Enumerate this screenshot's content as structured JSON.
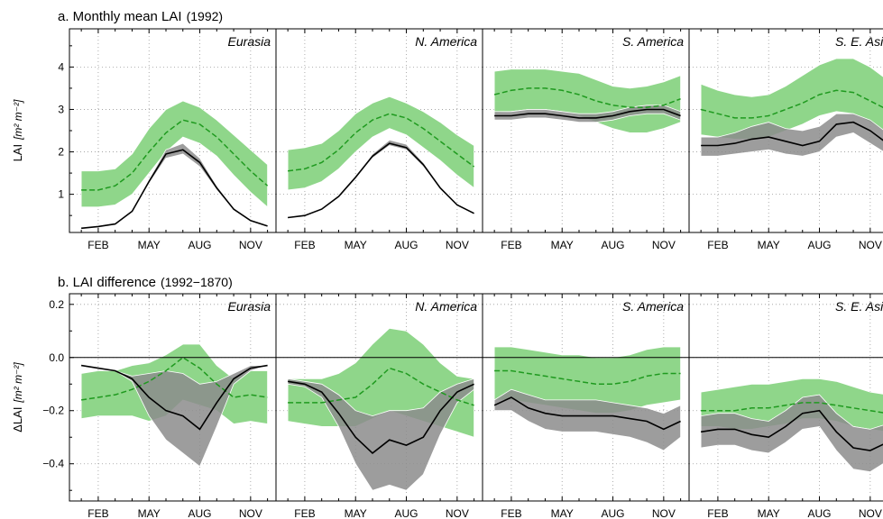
{
  "colors": {
    "green_band": "#8fd68a",
    "green_line": "#1f9a1f",
    "gray_band": "#8c8c8c",
    "black_line": "#000000",
    "overlap_band": "#4f7a4f"
  },
  "month_ticks": [
    "FEB",
    "MAY",
    "AUG",
    "NOV"
  ],
  "chart_data": [
    {
      "id": "a",
      "type": "line",
      "title_main": "a. Monthly mean LAI",
      "title_paren": "(1992)",
      "ylabel_main": "LAI",
      "ylabel_units": "[m² m⁻²]",
      "ylim": [
        0.1,
        4.9
      ],
      "yticks": [
        1,
        2,
        3,
        4
      ],
      "ytick_labels": [
        "1",
        "2",
        "3",
        "4"
      ],
      "zero_line": false,
      "x": [
        1,
        2,
        3,
        4,
        5,
        6,
        7,
        8,
        9,
        10,
        11,
        12
      ],
      "panels": [
        {
          "region": "Eurasia",
          "green_mean": [
            1.1,
            1.1,
            1.2,
            1.5,
            2.0,
            2.45,
            2.75,
            2.65,
            2.35,
            1.95,
            1.55,
            1.2
          ],
          "green_low": [
            0.7,
            0.7,
            0.75,
            1.0,
            1.5,
            2.0,
            2.35,
            2.2,
            1.9,
            1.45,
            1.05,
            0.7
          ],
          "green_high": [
            1.55,
            1.55,
            1.6,
            1.95,
            2.55,
            3.0,
            3.2,
            3.05,
            2.75,
            2.4,
            2.05,
            1.7
          ],
          "black_mean": [
            0.2,
            0.24,
            0.3,
            0.6,
            1.3,
            1.95,
            2.05,
            1.75,
            1.15,
            0.65,
            0.38,
            0.25
          ],
          "gray_low": [
            0.2,
            0.24,
            0.3,
            0.6,
            1.25,
            1.85,
            1.95,
            1.65,
            1.1,
            0.62,
            0.36,
            0.24
          ],
          "gray_high": [
            0.2,
            0.24,
            0.3,
            0.62,
            1.35,
            2.05,
            2.2,
            1.85,
            1.2,
            0.68,
            0.4,
            0.26
          ]
        },
        {
          "region": "N. America",
          "green_mean": [
            1.55,
            1.6,
            1.75,
            2.05,
            2.45,
            2.75,
            2.9,
            2.8,
            2.55,
            2.25,
            1.95,
            1.65
          ],
          "green_low": [
            1.1,
            1.15,
            1.3,
            1.6,
            2.0,
            2.35,
            2.55,
            2.4,
            2.1,
            1.8,
            1.45,
            1.15
          ],
          "green_high": [
            2.05,
            2.1,
            2.2,
            2.5,
            2.9,
            3.15,
            3.3,
            3.15,
            2.95,
            2.7,
            2.4,
            2.15
          ],
          "black_mean": [
            0.45,
            0.5,
            0.65,
            0.95,
            1.4,
            1.9,
            2.2,
            2.1,
            1.7,
            1.15,
            0.75,
            0.55
          ],
          "gray_low": [
            0.45,
            0.5,
            0.65,
            0.95,
            1.38,
            1.85,
            2.15,
            2.05,
            1.65,
            1.12,
            0.73,
            0.53
          ],
          "gray_high": [
            0.45,
            0.5,
            0.65,
            0.97,
            1.42,
            1.95,
            2.28,
            2.18,
            1.75,
            1.18,
            0.77,
            0.56
          ]
        },
        {
          "region": "S. America",
          "green_mean": [
            3.35,
            3.45,
            3.5,
            3.5,
            3.45,
            3.35,
            3.2,
            3.1,
            3.05,
            3.05,
            3.1,
            3.25
          ],
          "green_low": [
            2.9,
            2.95,
            3.0,
            3.0,
            2.95,
            2.85,
            2.7,
            2.55,
            2.45,
            2.45,
            2.55,
            2.7
          ],
          "green_high": [
            3.9,
            3.95,
            3.95,
            3.95,
            3.9,
            3.85,
            3.7,
            3.55,
            3.5,
            3.55,
            3.65,
            3.8
          ],
          "black_mean": [
            2.85,
            2.85,
            2.9,
            2.9,
            2.85,
            2.8,
            2.8,
            2.85,
            2.95,
            3.0,
            3.0,
            2.85
          ],
          "gray_low": [
            2.75,
            2.75,
            2.8,
            2.8,
            2.75,
            2.7,
            2.7,
            2.75,
            2.85,
            2.9,
            2.9,
            2.75
          ],
          "gray_high": [
            2.95,
            2.95,
            3.0,
            3.0,
            2.95,
            2.9,
            2.9,
            2.95,
            3.05,
            3.1,
            3.1,
            2.95
          ]
        },
        {
          "region": "S. E. Asia",
          "green_mean": [
            3.0,
            2.9,
            2.8,
            2.8,
            2.85,
            3.0,
            3.15,
            3.35,
            3.45,
            3.4,
            3.2,
            3.0
          ],
          "green_low": [
            2.4,
            2.35,
            2.3,
            2.3,
            2.35,
            2.5,
            2.65,
            2.85,
            2.95,
            2.9,
            2.7,
            2.45
          ],
          "green_high": [
            3.6,
            3.45,
            3.35,
            3.3,
            3.35,
            3.55,
            3.8,
            4.05,
            4.2,
            4.2,
            4.0,
            3.7
          ],
          "black_mean": [
            2.15,
            2.15,
            2.2,
            2.3,
            2.35,
            2.25,
            2.15,
            2.25,
            2.65,
            2.7,
            2.5,
            2.2
          ],
          "gray_low": [
            1.9,
            1.9,
            1.95,
            2.0,
            2.05,
            1.95,
            1.9,
            2.0,
            2.35,
            2.45,
            2.2,
            1.95
          ],
          "gray_high": [
            2.35,
            2.35,
            2.45,
            2.6,
            2.7,
            2.55,
            2.5,
            2.6,
            2.9,
            2.9,
            2.75,
            2.45
          ]
        }
      ]
    },
    {
      "id": "b",
      "type": "line",
      "title_main": "b. LAI difference",
      "title_paren": "(1992−1870)",
      "ylabel_main": "ΔLAI",
      "ylabel_units": "[m² m⁻²]",
      "ylim": [
        -0.54,
        0.24
      ],
      "yticks": [
        -0.4,
        -0.2,
        0.0,
        0.2
      ],
      "ytick_labels": [
        "−0.4",
        "−0.2",
        "0.0",
        "0.2"
      ],
      "zero_line": true,
      "x": [
        1,
        2,
        3,
        4,
        5,
        6,
        7,
        8,
        9,
        10,
        11,
        12
      ],
      "panels": [
        {
          "region": "Eurasia",
          "green_mean": [
            -0.16,
            -0.15,
            -0.14,
            -0.12,
            -0.09,
            -0.05,
            0.0,
            -0.04,
            -0.1,
            -0.15,
            -0.14,
            -0.15
          ],
          "green_low": [
            -0.23,
            -0.22,
            -0.22,
            -0.22,
            -0.24,
            -0.22,
            -0.16,
            -0.18,
            -0.2,
            -0.25,
            -0.24,
            -0.25
          ],
          "green_high": [
            -0.06,
            -0.05,
            -0.05,
            -0.03,
            -0.02,
            0.01,
            0.05,
            0.05,
            -0.03,
            -0.08,
            -0.05,
            -0.05
          ],
          "black_mean": [
            -0.03,
            -0.04,
            -0.05,
            -0.08,
            -0.15,
            -0.2,
            -0.22,
            -0.27,
            -0.17,
            -0.08,
            -0.04,
            -0.03
          ],
          "gray_low": [
            -0.03,
            -0.04,
            -0.05,
            -0.09,
            -0.22,
            -0.31,
            -0.36,
            -0.41,
            -0.26,
            -0.1,
            -0.05,
            -0.03
          ],
          "gray_high": [
            -0.03,
            -0.04,
            -0.05,
            -0.07,
            -0.06,
            -0.05,
            -0.06,
            -0.1,
            -0.09,
            -0.06,
            -0.03,
            -0.03
          ]
        },
        {
          "region": "N. America",
          "green_mean": [
            -0.17,
            -0.17,
            -0.17,
            -0.16,
            -0.15,
            -0.1,
            -0.04,
            -0.06,
            -0.1,
            -0.13,
            -0.16,
            -0.18
          ],
          "green_low": [
            -0.24,
            -0.25,
            -0.26,
            -0.26,
            -0.26,
            -0.23,
            -0.2,
            -0.22,
            -0.24,
            -0.26,
            -0.28,
            -0.3
          ],
          "green_high": [
            -0.08,
            -0.08,
            -0.08,
            -0.06,
            -0.02,
            0.05,
            0.11,
            0.1,
            0.05,
            -0.02,
            -0.07,
            -0.08
          ],
          "black_mean": [
            -0.09,
            -0.1,
            -0.13,
            -0.21,
            -0.3,
            -0.36,
            -0.31,
            -0.33,
            -0.3,
            -0.2,
            -0.13,
            -0.1
          ],
          "gray_low": [
            -0.1,
            -0.11,
            -0.15,
            -0.26,
            -0.4,
            -0.5,
            -0.48,
            -0.5,
            -0.44,
            -0.29,
            -0.17,
            -0.12
          ],
          "gray_high": [
            -0.08,
            -0.09,
            -0.1,
            -0.14,
            -0.2,
            -0.22,
            -0.2,
            -0.2,
            -0.19,
            -0.13,
            -0.1,
            -0.08
          ]
        },
        {
          "region": "S. America",
          "green_mean": [
            -0.05,
            -0.05,
            -0.06,
            -0.07,
            -0.08,
            -0.09,
            -0.1,
            -0.1,
            -0.09,
            -0.07,
            -0.06,
            -0.06
          ],
          "green_low": [
            -0.16,
            -0.16,
            -0.17,
            -0.18,
            -0.19,
            -0.2,
            -0.21,
            -0.21,
            -0.2,
            -0.18,
            -0.17,
            -0.16
          ],
          "green_high": [
            0.04,
            0.04,
            0.03,
            0.02,
            0.01,
            0.01,
            0.0,
            0.0,
            0.01,
            0.03,
            0.04,
            0.04
          ],
          "black_mean": [
            -0.18,
            -0.15,
            -0.19,
            -0.21,
            -0.22,
            -0.22,
            -0.22,
            -0.22,
            -0.23,
            -0.24,
            -0.27,
            -0.24
          ],
          "gray_low": [
            -0.2,
            -0.2,
            -0.24,
            -0.27,
            -0.28,
            -0.28,
            -0.28,
            -0.29,
            -0.3,
            -0.32,
            -0.35,
            -0.3
          ],
          "gray_high": [
            -0.16,
            -0.12,
            -0.14,
            -0.16,
            -0.16,
            -0.16,
            -0.16,
            -0.17,
            -0.18,
            -0.19,
            -0.21,
            -0.18
          ]
        },
        {
          "region": "S. E. Asia",
          "green_mean": [
            -0.2,
            -0.2,
            -0.2,
            -0.19,
            -0.19,
            -0.18,
            -0.17,
            -0.17,
            -0.18,
            -0.19,
            -0.2,
            -0.21
          ],
          "green_low": [
            -0.26,
            -0.26,
            -0.27,
            -0.27,
            -0.26,
            -0.25,
            -0.23,
            -0.23,
            -0.24,
            -0.26,
            -0.27,
            -0.28
          ],
          "green_high": [
            -0.13,
            -0.12,
            -0.11,
            -0.1,
            -0.1,
            -0.09,
            -0.08,
            -0.08,
            -0.09,
            -0.11,
            -0.13,
            -0.14
          ],
          "black_mean": [
            -0.28,
            -0.27,
            -0.27,
            -0.29,
            -0.3,
            -0.26,
            -0.21,
            -0.2,
            -0.28,
            -0.34,
            -0.35,
            -0.32
          ],
          "gray_low": [
            -0.34,
            -0.33,
            -0.33,
            -0.35,
            -0.36,
            -0.32,
            -0.27,
            -0.26,
            -0.35,
            -0.42,
            -0.43,
            -0.39
          ],
          "gray_high": [
            -0.22,
            -0.21,
            -0.21,
            -0.23,
            -0.24,
            -0.2,
            -0.15,
            -0.14,
            -0.21,
            -0.26,
            -0.27,
            -0.25
          ]
        }
      ]
    }
  ]
}
